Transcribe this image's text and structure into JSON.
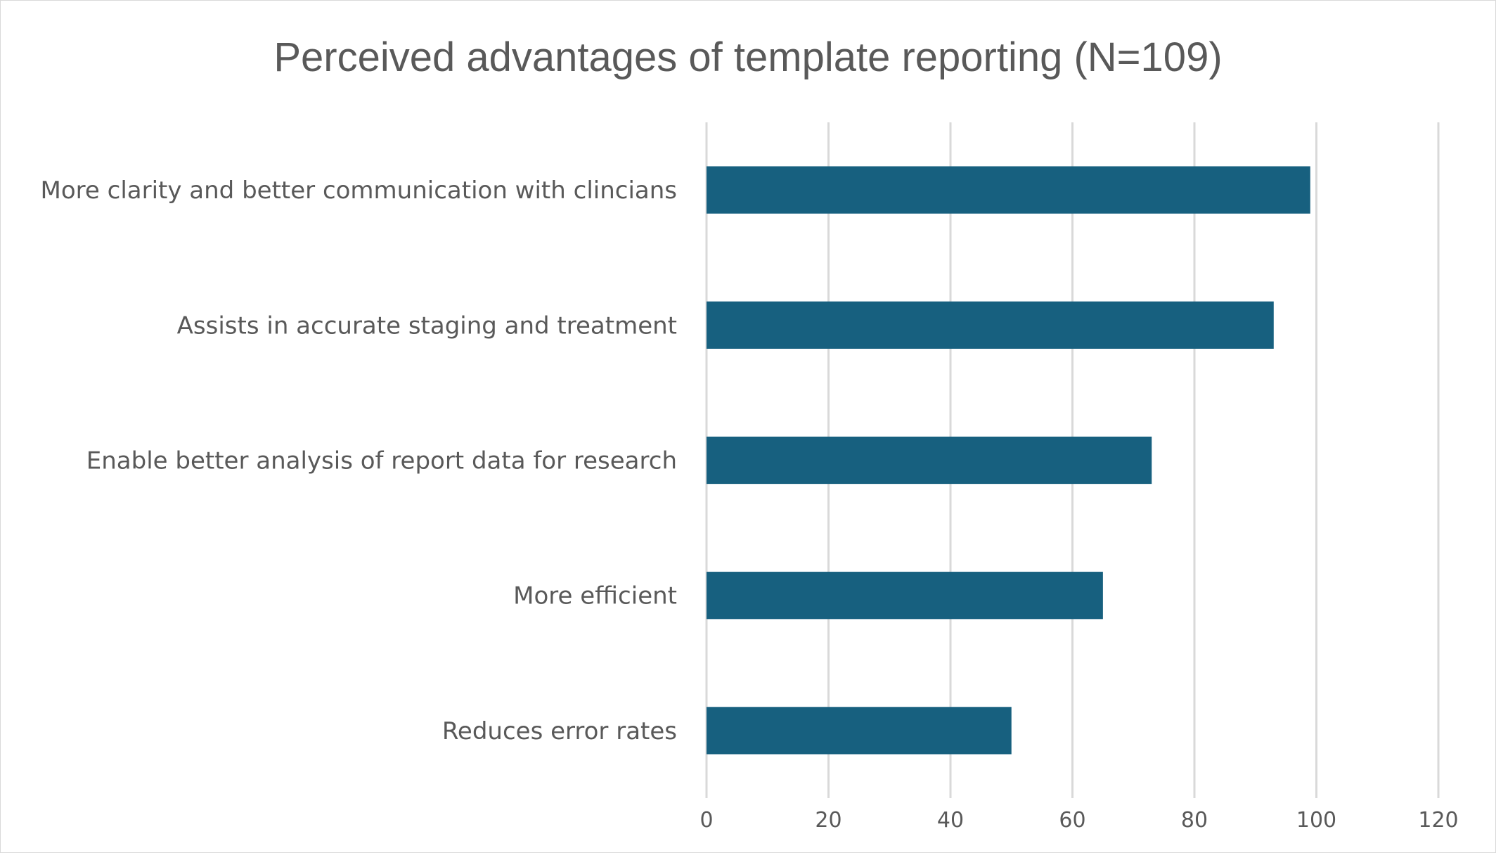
{
  "chart_data": {
    "type": "bar",
    "orientation": "horizontal",
    "title": "Perceived advantages of template reporting (N=109)",
    "xlabel": "",
    "ylabel": "",
    "categories": [
      "More clarity and better communication with clincians",
      "Assists in accurate staging and treatment",
      "Enable better analysis of report data for research",
      "More efficient",
      "Reduces error rates"
    ],
    "values": [
      99,
      93,
      73,
      65,
      50
    ],
    "xlim": [
      0,
      120
    ],
    "xticks": [
      0,
      20,
      40,
      60,
      80,
      100,
      120
    ],
    "grid": true,
    "legend": "none",
    "colors": {
      "bar": "#17607f",
      "grid": "#d9d9d9",
      "text": "#595959"
    }
  }
}
